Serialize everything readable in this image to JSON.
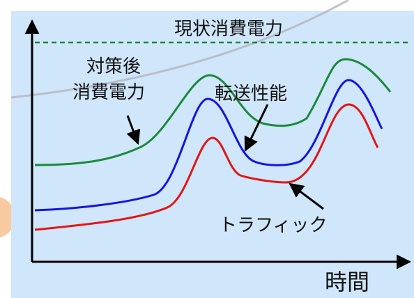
{
  "labels": {
    "current_power": "現状消費電力",
    "after_power_line1": "対策後",
    "after_power_line2": "消費電力",
    "transfer_performance": "転送性能",
    "traffic": "トラフィック",
    "x_axis": "時間"
  },
  "colors": {
    "panel_fill": "#cfe6fb",
    "current_power_dashed": "#1a8a3a",
    "after_power_curve": "#1a8a3a",
    "transfer_curve": "#1414e6",
    "traffic_curve": "#e61414",
    "axes": "#000000",
    "background_arc": "#b4b4bf",
    "corner_accent": "#f9c9a0"
  }
}
